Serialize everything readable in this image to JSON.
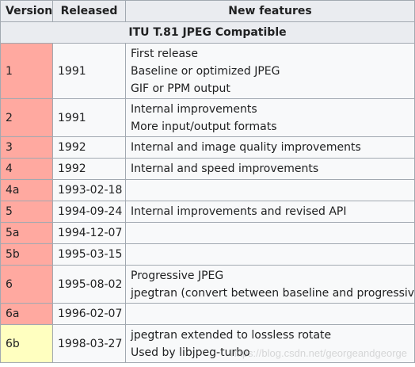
{
  "table": {
    "headers": [
      "Version",
      "Released",
      "New features"
    ],
    "group_title": "ITU T.81 JPEG Compatible",
    "colors": {
      "version_past": "#ffa9a0",
      "version_current": "#ffffc0",
      "header_bg": "#eaecf0",
      "border": "#a2a9b1"
    },
    "rows": [
      {
        "version": "1",
        "released": "1991",
        "features": [
          "First release",
          "Baseline or optimized JPEG",
          "GIF or PPM output"
        ],
        "status": "past"
      },
      {
        "version": "2",
        "released": "1991",
        "features": [
          "Internal improvements",
          "More input/output formats"
        ],
        "status": "past"
      },
      {
        "version": "3",
        "released": "1992",
        "features": [
          "Internal and image quality improvements"
        ],
        "status": "past"
      },
      {
        "version": "4",
        "released": "1992",
        "features": [
          "Internal and speed improvements"
        ],
        "status": "past"
      },
      {
        "version": "4a",
        "released": "1993-02-18",
        "features": [],
        "status": "past"
      },
      {
        "version": "5",
        "released": "1994-09-24",
        "features": [
          "Internal improvements and revised API"
        ],
        "status": "past"
      },
      {
        "version": "5a",
        "released": "1994-12-07",
        "features": [],
        "status": "past"
      },
      {
        "version": "5b",
        "released": "1995-03-15",
        "features": [],
        "status": "past"
      },
      {
        "version": "6",
        "released": "1995-08-02",
        "features": [
          "Progressive JPEG",
          "jpegtran (convert between baseline and progressive)"
        ],
        "status": "past"
      },
      {
        "version": "6a",
        "released": "1996-02-07",
        "features": [],
        "status": "past"
      },
      {
        "version": "6b",
        "released": "1998-03-27",
        "features": [
          "jpegtran extended to lossless rotate",
          "Used by libjpeg-turbo"
        ],
        "status": "current"
      }
    ]
  },
  "watermark": "https://blog.csdn.net/georgeandgeorge"
}
